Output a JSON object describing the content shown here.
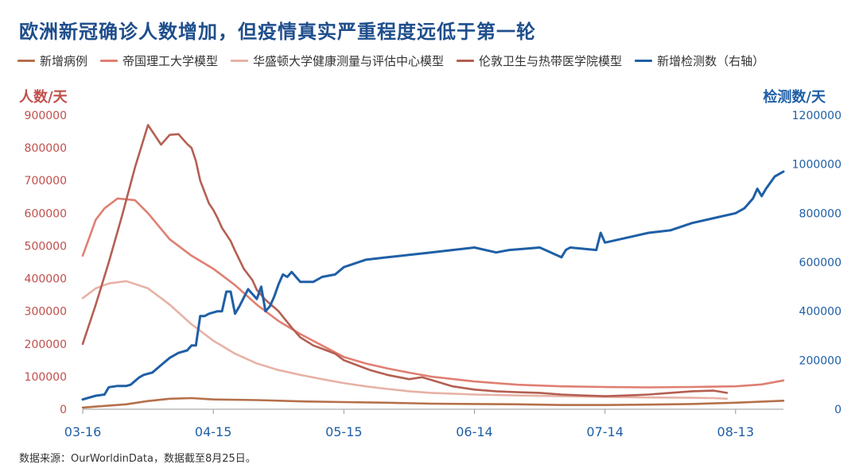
{
  "title": "欧洲新冠确诊人数增加，但疫情真实严重程度远低于第一轮",
  "source": "数据来源：OurWorldinData，数据截至8月25日。",
  "colors": {
    "left_axis": "#c0504d",
    "right_axis": "#1f5fa6",
    "title": "#1f4e8c"
  },
  "chart_data": {
    "type": "line",
    "title": "欧洲新冠确诊人数增加，但疫情真实严重程度远低于第一轮",
    "left_axis_label": "人数/天",
    "right_axis_label": "检测数/天",
    "left_ylim": [
      0,
      900000
    ],
    "right_ylim": [
      0,
      1200000
    ],
    "left_ticks": [
      "900000",
      "800000",
      "700000",
      "600000",
      "500000",
      "400000",
      "300000",
      "200000",
      "100000",
      "0"
    ],
    "right_ticks": [
      "1200000",
      "1000000",
      "800000",
      "600000",
      "400000",
      "200000",
      "0"
    ],
    "x_tick_labels": [
      "03-16",
      "04-15",
      "05-15",
      "06-14",
      "07-14",
      "08-13"
    ],
    "x_day_range": [
      0,
      161
    ],
    "x_tick_days": [
      0,
      30,
      60,
      90,
      120,
      150
    ],
    "grid": false,
    "legend_position": "top",
    "series": [
      {
        "name": "新增病例",
        "axis": "left",
        "color": "#b5704a",
        "x": [
          0,
          10,
          15,
          20,
          25,
          30,
          40,
          50,
          60,
          70,
          80,
          90,
          100,
          110,
          120,
          130,
          140,
          150,
          161
        ],
        "y": [
          5000,
          15000,
          25000,
          32000,
          34000,
          30000,
          28000,
          24000,
          22000,
          20000,
          17000,
          16000,
          15000,
          13000,
          13000,
          14000,
          16000,
          20000,
          26000
        ]
      },
      {
        "name": "帝国理工大学模型",
        "axis": "left",
        "color": "#e07f72",
        "x": [
          0,
          3,
          5,
          8,
          12,
          15,
          20,
          25,
          30,
          35,
          40,
          45,
          50,
          55,
          60,
          65,
          70,
          75,
          80,
          90,
          100,
          110,
          120,
          130,
          140,
          150,
          156,
          161
        ],
        "y": [
          470000,
          580000,
          615000,
          645000,
          640000,
          600000,
          520000,
          470000,
          430000,
          380000,
          320000,
          270000,
          230000,
          195000,
          160000,
          140000,
          125000,
          112000,
          100000,
          85000,
          75000,
          70000,
          68000,
          67000,
          68000,
          70000,
          76000,
          88000
        ]
      },
      {
        "name": "华盛顿大学健康测量与评估中心模型",
        "axis": "left",
        "color": "#e7b2a6",
        "x": [
          0,
          3,
          6,
          10,
          15,
          20,
          25,
          30,
          35,
          40,
          45,
          50,
          55,
          60,
          65,
          70,
          75,
          80,
          90,
          100,
          110,
          120,
          130,
          140,
          145,
          148
        ],
        "y": [
          340000,
          370000,
          385000,
          392000,
          370000,
          320000,
          260000,
          210000,
          170000,
          140000,
          120000,
          105000,
          92000,
          80000,
          70000,
          62000,
          55000,
          50000,
          45000,
          42000,
          40000,
          38000,
          36000,
          35000,
          34000,
          32000
        ]
      },
      {
        "name": "伦敦卫生与热带医学院模型",
        "axis": "left",
        "color": "#b45f52",
        "x": [
          0,
          3,
          6,
          9,
          12,
          15,
          18,
          20,
          22,
          24,
          25,
          26,
          27,
          29,
          30,
          31,
          32,
          34,
          35,
          37,
          39,
          40,
          42,
          45,
          48,
          50,
          53,
          55,
          58,
          60,
          63,
          66,
          70,
          75,
          78,
          80,
          85,
          90,
          95,
          100,
          105,
          110,
          115,
          120,
          125,
          130,
          135,
          140,
          145,
          148
        ],
        "y": [
          200000,
          320000,
          450000,
          590000,
          740000,
          870000,
          810000,
          840000,
          842000,
          812000,
          800000,
          760000,
          700000,
          630000,
          610000,
          585000,
          555000,
          515000,
          485000,
          430000,
          395000,
          365000,
          335000,
          300000,
          250000,
          220000,
          195000,
          185000,
          170000,
          150000,
          135000,
          120000,
          105000,
          92000,
          98000,
          90000,
          70000,
          60000,
          55000,
          52000,
          50000,
          45000,
          42000,
          40000,
          42000,
          45000,
          50000,
          55000,
          57000,
          50000
        ]
      },
      {
        "name": "新增检测数（右轴）",
        "axis": "right",
        "color": "#1f5fa6",
        "x": [
          0,
          3,
          5,
          6,
          8,
          10,
          11,
          13,
          14,
          16,
          18,
          20,
          21,
          22,
          24,
          25,
          26,
          27,
          28,
          29,
          31,
          32,
          33,
          34,
          35,
          36,
          38,
          40,
          41,
          42,
          43,
          44,
          45,
          46,
          47,
          48,
          50,
          53,
          55,
          58,
          60,
          65,
          70,
          75,
          80,
          85,
          90,
          95,
          98,
          105,
          110,
          111,
          112,
          118,
          119,
          120,
          125,
          130,
          135,
          140,
          145,
          150,
          152,
          154,
          155,
          156,
          157,
          159,
          161
        ],
        "y": [
          40000,
          55000,
          60000,
          90000,
          95000,
          95000,
          100000,
          130000,
          140000,
          150000,
          180000,
          210000,
          220000,
          230000,
          240000,
          260000,
          260000,
          380000,
          380000,
          390000,
          400000,
          400000,
          480000,
          480000,
          390000,
          420000,
          490000,
          450000,
          500000,
          400000,
          420000,
          460000,
          510000,
          550000,
          540000,
          560000,
          520000,
          520000,
          540000,
          550000,
          580000,
          610000,
          620000,
          630000,
          640000,
          650000,
          660000,
          640000,
          650000,
          660000,
          620000,
          650000,
          660000,
          650000,
          720000,
          680000,
          700000,
          720000,
          730000,
          760000,
          780000,
          800000,
          820000,
          860000,
          900000,
          870000,
          900000,
          950000,
          970000
        ]
      }
    ]
  }
}
